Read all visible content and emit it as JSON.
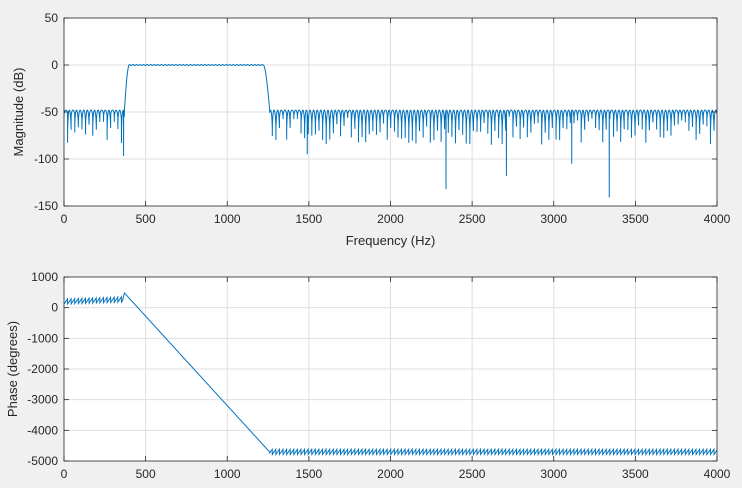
{
  "figure": {
    "background": "#f0f0f0",
    "axes_background": "#ffffff",
    "grid_color": "#dfdfdf",
    "axis_color": "#262626",
    "line_color": "#0072bd"
  },
  "chart_data": [
    {
      "type": "line",
      "title": "",
      "xlabel": "Frequency (Hz)",
      "ylabel": "Magnitude (dB)",
      "xlim": [
        0,
        4000
      ],
      "ylim": [
        -150,
        50
      ],
      "xticks": [
        0,
        500,
        1000,
        1500,
        2000,
        2500,
        3000,
        3500,
        4000
      ],
      "yticks": [
        -150,
        -100,
        -50,
        0,
        50
      ],
      "xtick_labels": [
        "0",
        "500",
        "1000",
        "1500",
        "2000",
        "2500",
        "3000",
        "3500",
        "4000"
      ],
      "ytick_labels": [
        "-150",
        "-100",
        "-50",
        "0",
        "50"
      ],
      "grid": true,
      "series": [
        {
          "passband_hz": [
            400,
            1220
          ],
          "transition_hz": [
            [
              370,
              400
            ],
            [
              1220,
              1260
            ]
          ],
          "passband_level_db": 0,
          "passband_ripple_db": 1,
          "stopband_peak_db": -48,
          "stopband_lobe_width_hz": 22,
          "typical_null_db": [
            -55,
            -85
          ],
          "deep_nulls": [
            {
              "x": 365,
              "y": -97
            },
            {
              "x": 1490,
              "y": -95
            },
            {
              "x": 2340,
              "y": -132
            },
            {
              "x": 2710,
              "y": -118
            },
            {
              "x": 3110,
              "y": -105
            },
            {
              "x": 3340,
              "y": -141
            }
          ]
        }
      ]
    },
    {
      "type": "line",
      "title": "",
      "xlabel": "",
      "ylabel": "Phase (degrees)",
      "xlim": [
        0,
        4000
      ],
      "ylim": [
        -5000,
        1000
      ],
      "xticks": [
        0,
        500,
        1000,
        1500,
        2000,
        2500,
        3000,
        3500,
        4000
      ],
      "yticks": [
        -5000,
        -4000,
        -3000,
        -2000,
        -1000,
        0,
        1000
      ],
      "xtick_labels": [
        "0",
        "500",
        "1000",
        "1500",
        "2000",
        "2500",
        "3000",
        "3500",
        "4000"
      ],
      "ytick_labels": [
        "-5000",
        "-4000",
        "-3000",
        "-2000",
        "-1000",
        "0",
        "1000"
      ],
      "grid": true,
      "series": [
        {
          "points": [
            {
              "x": 0,
              "y": 200
            },
            {
              "x": 360,
              "y": 270
            },
            {
              "x": 370,
              "y": 480
            },
            {
              "x": 1250,
              "y": -4650
            },
            {
              "x": 1260,
              "y": -4700
            },
            {
              "x": 4000,
              "y": -4700
            }
          ],
          "sawtooth_period_hz": 22,
          "sawtooth_amplitude_deg": 170
        }
      ]
    }
  ]
}
